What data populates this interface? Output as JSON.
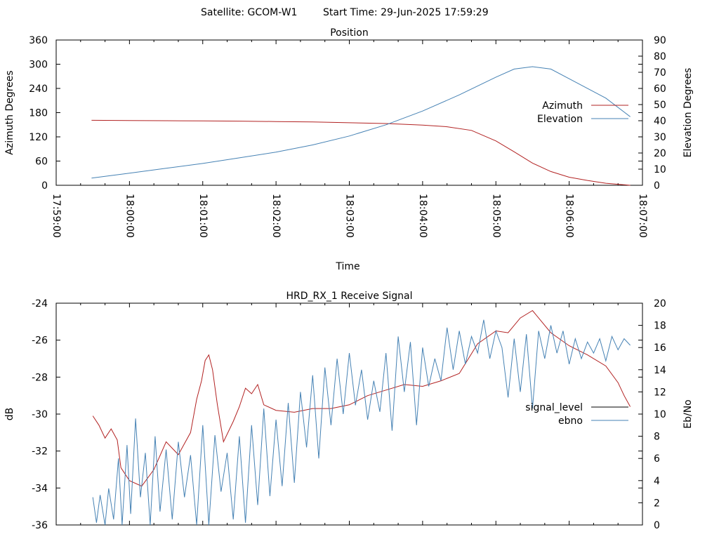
{
  "header": {
    "satellite": "Satellite: GCOM-W1",
    "start_time": "Start Time: 29-Jun-2025 17:59:29"
  },
  "chart_data": [
    {
      "type": "line",
      "title": "Position",
      "xlabel": "Time",
      "ylabel": "Azimuth Degrees",
      "y2label": "Elevation Degrees",
      "xlim": [
        "17:59:00",
        "18:07:00"
      ],
      "ylim": [
        0,
        360
      ],
      "y2lim": [
        0,
        90
      ],
      "x_ticks": [
        "17:59:00",
        "18:00:00",
        "18:01:00",
        "18:02:00",
        "18:03:00",
        "18:04:00",
        "18:05:00",
        "18:06:00",
        "18:07:00"
      ],
      "y_ticks": [
        "0",
        "60",
        "120",
        "180",
        "240",
        "300",
        "360"
      ],
      "y2_ticks": [
        "0",
        "10",
        "20",
        "30",
        "40",
        "50",
        "60",
        "70",
        "80",
        "90"
      ],
      "grid": false,
      "legend_position": "top-right",
      "series": [
        {
          "name": "Azimuth",
          "axis": "y",
          "color": "#b22222",
          "points": [
            [
              "17:59:29",
              161
            ],
            [
              "18:00:00",
              160.5
            ],
            [
              "18:00:30",
              160
            ],
            [
              "18:01:00",
              159.5
            ],
            [
              "18:01:30",
              159
            ],
            [
              "18:02:00",
              158
            ],
            [
              "18:02:30",
              157
            ],
            [
              "18:03:00",
              155
            ],
            [
              "18:03:30",
              153
            ],
            [
              "18:04:00",
              149
            ],
            [
              "18:04:20",
              145
            ],
            [
              "18:04:40",
              136
            ],
            [
              "18:05:00",
              110
            ],
            [
              "18:05:15",
              83
            ],
            [
              "18:05:30",
              55
            ],
            [
              "18:05:45",
              34
            ],
            [
              "18:06:00",
              20
            ],
            [
              "18:06:15",
              12
            ],
            [
              "18:06:30",
              5
            ],
            [
              "18:06:50",
              0
            ]
          ]
        },
        {
          "name": "Elevation",
          "axis": "y2",
          "color": "#4682b4",
          "points": [
            [
              "17:59:29",
              4.5
            ],
            [
              "18:00:00",
              7.5
            ],
            [
              "18:00:30",
              10.5
            ],
            [
              "18:01:00",
              13.5
            ],
            [
              "18:01:30",
              17
            ],
            [
              "18:02:00",
              20.5
            ],
            [
              "18:02:30",
              25
            ],
            [
              "18:03:00",
              30.5
            ],
            [
              "18:03:30",
              37.5
            ],
            [
              "18:04:00",
              46
            ],
            [
              "18:04:30",
              56
            ],
            [
              "18:05:00",
              67
            ],
            [
              "18:05:15",
              72
            ],
            [
              "18:05:30",
              73.5
            ],
            [
              "18:05:45",
              72
            ],
            [
              "18:06:00",
              66
            ],
            [
              "18:06:30",
              54
            ],
            [
              "18:06:50",
              42.5
            ]
          ]
        }
      ]
    },
    {
      "type": "line",
      "title": "HRD_RX_1 Receive Signal",
      "xlabel": "",
      "ylabel": "dB",
      "y2label": "Eb/No",
      "xlim": [
        "17:59:00",
        "18:07:00"
      ],
      "ylim": [
        -36,
        -24
      ],
      "y2lim": [
        0,
        20
      ],
      "y_ticks": [
        "-24",
        "-26",
        "-28",
        "-30",
        "-32",
        "-34",
        "-36"
      ],
      "y2_ticks": [
        "0",
        "2",
        "4",
        "6",
        "8",
        "10",
        "12",
        "14",
        "16",
        "18",
        "20"
      ],
      "grid": false,
      "legend_position": "right",
      "series": [
        {
          "name": "signal_level",
          "axis": "y",
          "color": "#b22222",
          "points": [
            [
              "17:59:30",
              -30.1
            ],
            [
              "17:59:35",
              -30.6
            ],
            [
              "17:59:40",
              -31.3
            ],
            [
              "17:59:45",
              -30.8
            ],
            [
              "17:59:50",
              -31.4
            ],
            [
              "17:59:53",
              -32.9
            ],
            [
              "18:00:00",
              -33.6
            ],
            [
              "18:00:10",
              -33.9
            ],
            [
              "18:00:20",
              -33.0
            ],
            [
              "18:00:30",
              -31.5
            ],
            [
              "18:00:40",
              -32.2
            ],
            [
              "18:00:50",
              -31.0
            ],
            [
              "18:00:55",
              -29.2
            ],
            [
              "18:00:59",
              -28.2
            ],
            [
              "18:01:02",
              -27.1
            ],
            [
              "18:01:05",
              -26.8
            ],
            [
              "18:01:08",
              -27.6
            ],
            [
              "18:01:12",
              -29.5
            ],
            [
              "18:01:17",
              -31.5
            ],
            [
              "18:01:25",
              -30.4
            ],
            [
              "18:01:30",
              -29.6
            ],
            [
              "18:01:35",
              -28.6
            ],
            [
              "18:01:40",
              -28.9
            ],
            [
              "18:01:45",
              -28.4
            ],
            [
              "18:01:50",
              -29.5
            ],
            [
              "18:02:00",
              -29.8
            ],
            [
              "18:02:15",
              -29.9
            ],
            [
              "18:02:30",
              -29.7
            ],
            [
              "18:02:45",
              -29.7
            ],
            [
              "18:03:00",
              -29.5
            ],
            [
              "18:03:15",
              -29.0
            ],
            [
              "18:03:30",
              -28.7
            ],
            [
              "18:03:45",
              -28.4
            ],
            [
              "18:04:00",
              -28.5
            ],
            [
              "18:04:15",
              -28.2
            ],
            [
              "18:04:30",
              -27.8
            ],
            [
              "18:04:45",
              -26.2
            ],
            [
              "18:05:00",
              -25.5
            ],
            [
              "18:05:10",
              -25.6
            ],
            [
              "18:05:20",
              -24.8
            ],
            [
              "18:05:30",
              -24.4
            ],
            [
              "18:05:45",
              -25.6
            ],
            [
              "18:06:00",
              -26.3
            ],
            [
              "18:06:15",
              -26.8
            ],
            [
              "18:06:30",
              -27.4
            ],
            [
              "18:06:40",
              -28.3
            ],
            [
              "18:06:45",
              -29.0
            ],
            [
              "18:06:50",
              -29.6
            ]
          ]
        },
        {
          "name": "ebno",
          "axis": "y2",
          "color": "#4682b4",
          "points": [
            [
              "17:59:30",
              2.5
            ],
            [
              "17:59:33",
              0.2
            ],
            [
              "17:59:36",
              2.7
            ],
            [
              "17:59:40",
              0.0
            ],
            [
              "17:59:43",
              3.3
            ],
            [
              "17:59:47",
              0.5
            ],
            [
              "17:59:51",
              6.0
            ],
            [
              "17:59:54",
              0.0
            ],
            [
              "17:59:58",
              7.2
            ],
            [
              "18:00:01",
              1.0
            ],
            [
              "18:00:05",
              9.6
            ],
            [
              "18:00:09",
              2.5
            ],
            [
              "18:00:13",
              6.5
            ],
            [
              "18:00:17",
              0.0
            ],
            [
              "18:00:21",
              8.0
            ],
            [
              "18:00:25",
              1.2
            ],
            [
              "18:00:30",
              6.8
            ],
            [
              "18:00:35",
              0.5
            ],
            [
              "18:00:40",
              7.5
            ],
            [
              "18:00:45",
              2.5
            ],
            [
              "18:00:50",
              6.3
            ],
            [
              "18:00:55",
              0.0
            ],
            [
              "18:01:00",
              9.0
            ],
            [
              "18:01:05",
              0.0
            ],
            [
              "18:01:10",
              8.1
            ],
            [
              "18:01:15",
              3.0
            ],
            [
              "18:01:20",
              6.5
            ],
            [
              "18:01:25",
              0.5
            ],
            [
              "18:01:30",
              8.0
            ],
            [
              "18:01:35",
              0.2
            ],
            [
              "18:01:40",
              9.0
            ],
            [
              "18:01:45",
              1.8
            ],
            [
              "18:01:50",
              10.5
            ],
            [
              "18:01:55",
              2.6
            ],
            [
              "18:02:00",
              9.5
            ],
            [
              "18:02:05",
              3.5
            ],
            [
              "18:02:10",
              11.0
            ],
            [
              "18:02:15",
              3.8
            ],
            [
              "18:02:20",
              12.0
            ],
            [
              "18:02:25",
              7.0
            ],
            [
              "18:02:30",
              13.5
            ],
            [
              "18:02:35",
              6.0
            ],
            [
              "18:02:40",
              14.2
            ],
            [
              "18:02:45",
              9.0
            ],
            [
              "18:02:50",
              15.0
            ],
            [
              "18:02:55",
              10.0
            ],
            [
              "18:03:00",
              15.5
            ],
            [
              "18:03:05",
              10.8
            ],
            [
              "18:03:10",
              14.0
            ],
            [
              "18:03:15",
              9.5
            ],
            [
              "18:03:20",
              13.0
            ],
            [
              "18:03:25",
              10.2
            ],
            [
              "18:03:30",
              15.5
            ],
            [
              "18:03:35",
              8.5
            ],
            [
              "18:03:40",
              17.0
            ],
            [
              "18:03:45",
              12.0
            ],
            [
              "18:03:50",
              16.5
            ],
            [
              "18:03:55",
              9.0
            ],
            [
              "18:04:00",
              16.0
            ],
            [
              "18:04:05",
              12.5
            ],
            [
              "18:04:10",
              15.0
            ],
            [
              "18:04:15",
              13.0
            ],
            [
              "18:04:20",
              17.8
            ],
            [
              "18:04:25",
              14.0
            ],
            [
              "18:04:30",
              17.5
            ],
            [
              "18:04:35",
              14.5
            ],
            [
              "18:04:40",
              17.0
            ],
            [
              "18:04:45",
              15.5
            ],
            [
              "18:04:50",
              18.5
            ],
            [
              "18:04:55",
              15.0
            ],
            [
              "18:05:00",
              17.5
            ],
            [
              "18:05:05",
              16.0
            ],
            [
              "18:05:10",
              11.5
            ],
            [
              "18:05:15",
              16.8
            ],
            [
              "18:05:20",
              12.0
            ],
            [
              "18:05:25",
              17.2
            ],
            [
              "18:05:30",
              10.5
            ],
            [
              "18:05:35",
              17.5
            ],
            [
              "18:05:40",
              15.0
            ],
            [
              "18:05:45",
              18.0
            ],
            [
              "18:05:50",
              15.5
            ],
            [
              "18:05:55",
              17.5
            ],
            [
              "18:06:00",
              14.5
            ],
            [
              "18:06:05",
              16.8
            ],
            [
              "18:06:10",
              15.0
            ],
            [
              "18:06:15",
              16.5
            ],
            [
              "18:06:20",
              15.5
            ],
            [
              "18:06:25",
              16.8
            ],
            [
              "18:06:30",
              14.8
            ],
            [
              "18:06:35",
              17.0
            ],
            [
              "18:06:40",
              15.8
            ],
            [
              "18:06:45",
              16.8
            ],
            [
              "18:06:50",
              16.2
            ]
          ]
        }
      ]
    }
  ]
}
